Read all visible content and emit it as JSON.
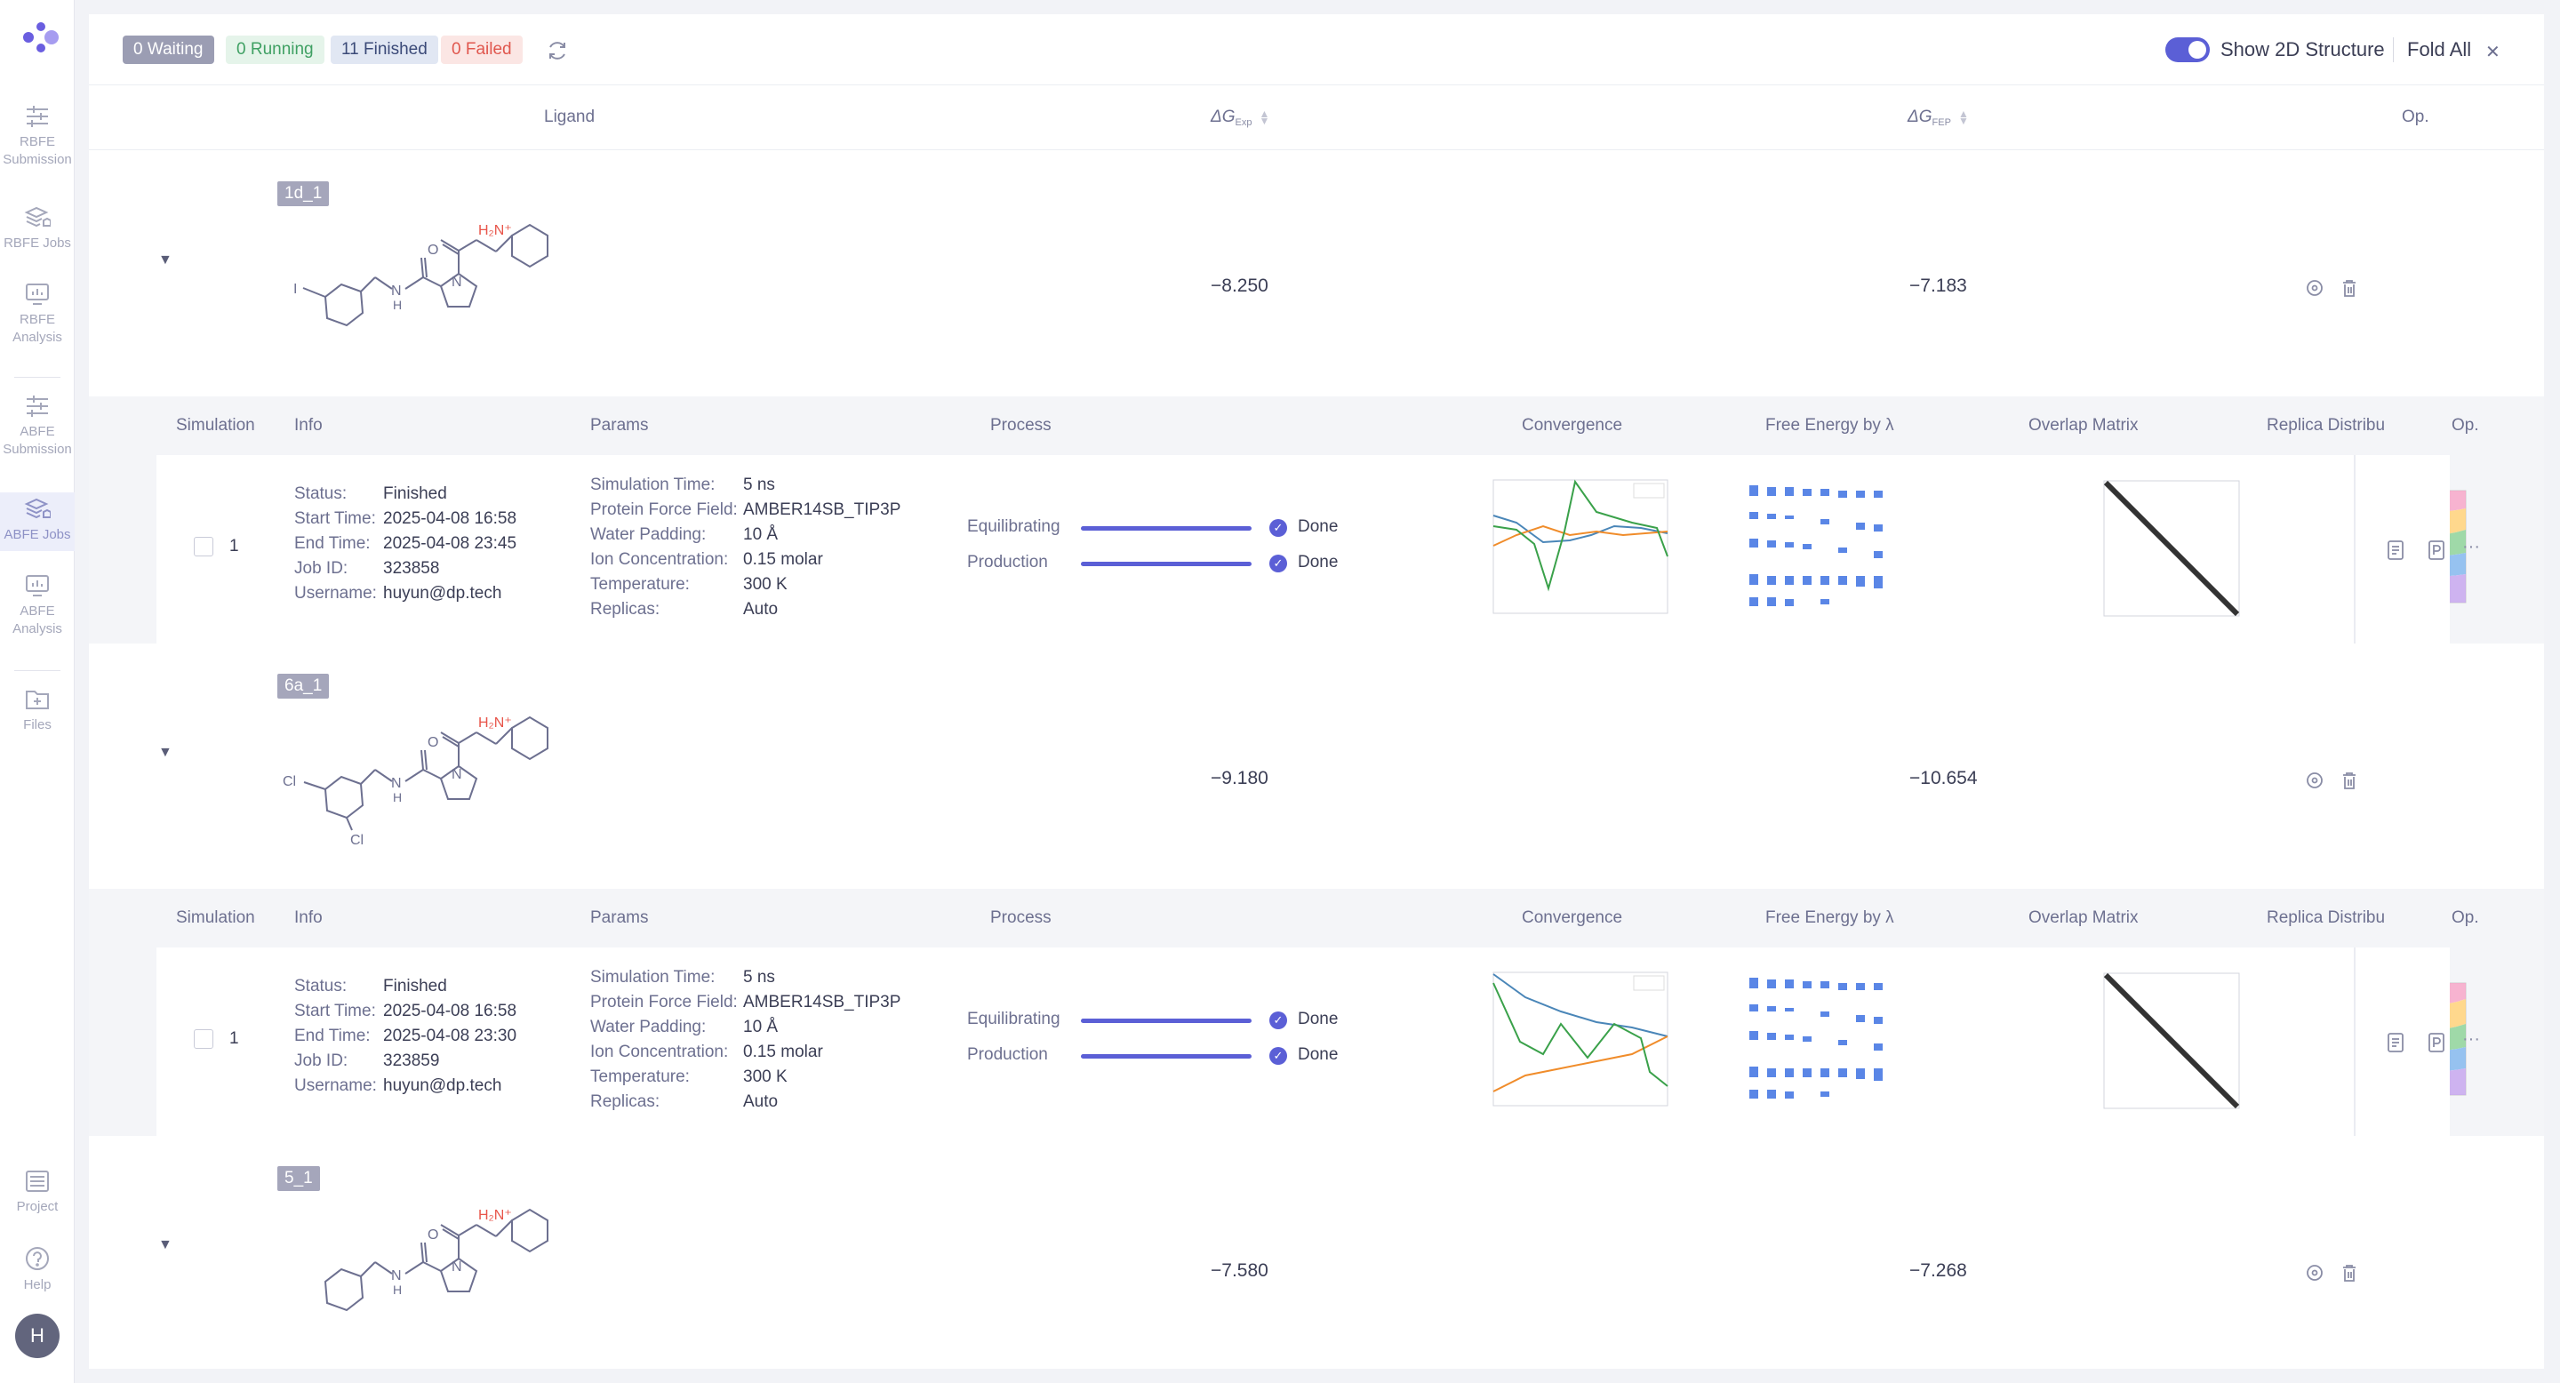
{
  "sidebar": {
    "items": [
      {
        "label_line1": "RBFE",
        "label_line2": "Submission"
      },
      {
        "label_line1": "RBFE Jobs",
        "label_line2": ""
      },
      {
        "label_line1": "RBFE",
        "label_line2": "Analysis"
      },
      {
        "label_line1": "ABFE",
        "label_line2": "Submission"
      },
      {
        "label_line1": "ABFE Jobs",
        "label_line2": ""
      },
      {
        "label_line1": "ABFE",
        "label_line2": "Analysis"
      },
      {
        "label_line1": "Files",
        "label_line2": ""
      },
      {
        "label_line1": "Project",
        "label_line2": ""
      },
      {
        "label_line1": "Help",
        "label_line2": ""
      }
    ],
    "active": "ABFE Jobs",
    "avatar": "H"
  },
  "toolbar": {
    "waiting": "0 Waiting",
    "running": "0 Running",
    "finished": "11 Finished",
    "failed": "0 Failed",
    "show2d": "Show 2D Structure",
    "show2d_on": true,
    "foldall": "Fold All"
  },
  "table": {
    "ligand": "Ligand",
    "dg": "ΔG",
    "exp_sub": "Exp",
    "fep_sub": "FEP",
    "op": "Op."
  },
  "sim_header": {
    "simulation": "Simulation",
    "info": "Info",
    "params": "Params",
    "process": "Process",
    "convergence": "Convergence",
    "free_energy": "Free Energy by λ",
    "overlap": "Overlap Matrix",
    "replica": "Replica Distribu",
    "op": "Op."
  },
  "rows": [
    {
      "tag": "1d_1",
      "dg_exp": "−8.250",
      "dg_fep": "−7.183",
      "sim": {
        "no": "1",
        "status_k": "Status:",
        "status": "Finished",
        "start_k": "Start Time:",
        "start": "2025-04-08 16:58",
        "end_k": "End Time:",
        "end": "2025-04-08 23:45",
        "job_k": "Job ID:",
        "job": "323858",
        "user_k": "Username:",
        "user": "huyun@dp.tech",
        "simtime_k": "Simulation Time:",
        "simtime": "5 ns",
        "ff_k": "Protein Force Field:",
        "ff": "AMBER14SB_TIP3P",
        "wp_k": "Water Padding:",
        "wp": "10 Å",
        "ion_k": "Ion Concentration:",
        "ion": "0.15 molar",
        "temp_k": "Temperature:",
        "temp": "300 K",
        "rep_k": "Replicas:",
        "rep": "Auto",
        "p1": "Equilibrating",
        "p2": "Production",
        "p1_status": "Done",
        "p2_status": "Done",
        "progress_p1": 1.0,
        "progress_p2": 1.0
      }
    },
    {
      "tag": "6a_1",
      "dg_exp": "−9.180",
      "dg_fep": "−10.654",
      "sim": {
        "no": "1",
        "status_k": "Status:",
        "status": "Finished",
        "start_k": "Start Time:",
        "start": "2025-04-08 16:58",
        "end_k": "End Time:",
        "end": "2025-04-08 23:30",
        "job_k": "Job ID:",
        "job": "323859",
        "user_k": "Username:",
        "user": "huyun@dp.tech",
        "simtime_k": "Simulation Time:",
        "simtime": "5 ns",
        "ff_k": "Protein Force Field:",
        "ff": "AMBER14SB_TIP3P",
        "wp_k": "Water Padding:",
        "wp": "10 Å",
        "ion_k": "Ion Concentration:",
        "ion": "0.15 molar",
        "temp_k": "Temperature:",
        "temp": "300 K",
        "rep_k": "Replicas:",
        "rep": "Auto",
        "p1": "Equilibrating",
        "p2": "Production",
        "p1_status": "Done",
        "p2_status": "Done",
        "progress_p1": 1.0,
        "progress_p2": 1.0
      }
    },
    {
      "tag": "5_1",
      "dg_exp": "−7.580",
      "dg_fep": "−7.268"
    }
  ],
  "colors": {
    "accent": "#5b5fd6",
    "amine": "#e8554a"
  }
}
